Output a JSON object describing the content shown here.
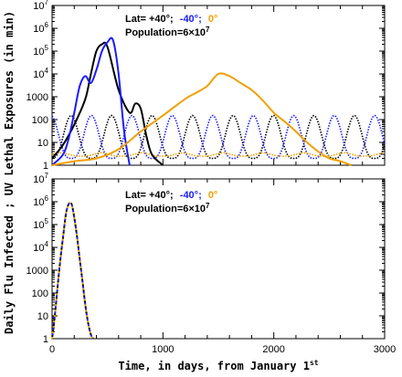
{
  "chart_data": [
    {
      "type": "line",
      "ylabel": "UV Lethal Exposures (in min)",
      "yscale": "log",
      "ylim": [
        1,
        10000000
      ],
      "xlim": [
        0,
        3000
      ],
      "yticks": [
        "1",
        "10",
        "100",
        "1000",
        "10^4",
        "10^5",
        "10^6",
        "10^7"
      ],
      "legend": {
        "lat_prefix": "Lat= ",
        "lat_values": [
          "+40°;",
          "-40°;",
          "0°"
        ],
        "population": "Population=6×10^7",
        "position": "top-center"
      },
      "series": [
        {
          "name": "+40°",
          "color": "#000000",
          "x": [
            0,
            100,
            200,
            300,
            350,
            400,
            450,
            500,
            600,
            700,
            750,
            800,
            850,
            900,
            1000
          ],
          "values": [
            2,
            8,
            60,
            800,
            10000,
            100000,
            200000,
            150000,
            2000,
            200,
            500,
            300,
            20,
            3,
            1
          ]
        },
        {
          "name": "-40°",
          "color": "#1a1aff",
          "x": [
            0,
            100,
            150,
            200,
            250,
            300,
            350,
            400,
            450,
            500,
            550,
            600,
            650,
            700
          ],
          "values": [
            1,
            3,
            15,
            200,
            3000,
            8000,
            4000,
            15000,
            100000,
            250000,
            300000,
            10000,
            30,
            1
          ]
        },
        {
          "name": "0°",
          "color": "#f0a000",
          "x": [
            0,
            200,
            400,
            600,
            800,
            1000,
            1200,
            1300,
            1400,
            1500,
            1600,
            1700,
            1800,
            1900,
            2000,
            2100,
            2200,
            2300,
            2400,
            2500,
            2600,
            2700
          ],
          "values": [
            1,
            1.5,
            2,
            5,
            30,
            150,
            800,
            1500,
            3000,
            10000,
            8000,
            4000,
            2000,
            700,
            200,
            80,
            30,
            10,
            4,
            2,
            1.5,
            1
          ]
        }
      ],
      "seasonal_uv": [
        {
          "name": "+40° UV",
          "color": "#000000",
          "min": 2,
          "max": 150,
          "peak_day": 172
        },
        {
          "name": "-40° UV",
          "color": "#1a1aff",
          "min": 2,
          "max": 150,
          "peak_day": 355
        },
        {
          "name": "0° UV",
          "color": "#f0a000",
          "min": 2.5,
          "max": 3.5,
          "peak_day": 80
        }
      ]
    },
    {
      "type": "line",
      "ylabel": "Daily Flu Infected",
      "yscale": "log",
      "ylim": [
        1,
        10000000
      ],
      "xlim": [
        0,
        3000
      ],
      "xlabel": "Time, in days, from January 1st",
      "xticks": [
        "0",
        "1000",
        "2000",
        "3000"
      ],
      "yticks": [
        "1",
        "10",
        "100",
        "1000",
        "10^4",
        "10^5",
        "10^6",
        "10^7"
      ],
      "legend": {
        "lat_prefix": "Lat= ",
        "lat_values": [
          "+40°;",
          "-40°;",
          "0°"
        ],
        "population": "Population=6×10^7",
        "position": "top-center"
      },
      "series": [
        {
          "name": "All latitudes",
          "colors": [
            "#f0a000",
            "#1a1aff",
            "#000000"
          ],
          "x": [
            0,
            25,
            50,
            75,
            100,
            125,
            150,
            165,
            180,
            200,
            225,
            250,
            275,
            300,
            325,
            350,
            370
          ],
          "values": [
            1,
            10,
            200,
            3000,
            30000,
            300000,
            800000,
            850000,
            700000,
            200000,
            30000,
            3000,
            300,
            30,
            5,
            1.5,
            1
          ]
        }
      ]
    }
  ],
  "colors": {
    "black": "#000000",
    "blue": "#1a1aff",
    "orange": "#f0a000"
  }
}
